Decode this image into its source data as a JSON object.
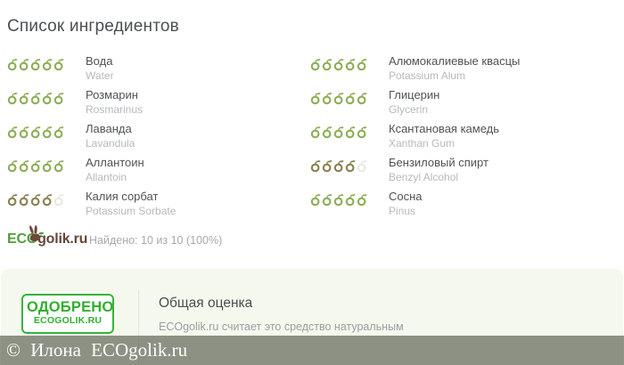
{
  "title": "Список ингредиентов",
  "colors": {
    "green": "#8fae58",
    "olive": "#8a8052",
    "empty": "#e9e9e3",
    "stamp_green": "#2fb02f",
    "logo_green": "#4f9e3e",
    "logo_brown": "#64463a",
    "panel_bg": "#f5f8ec"
  },
  "icons": {
    "rating": "fruit-icon",
    "logo": "rabbit-icon"
  },
  "ingredients": {
    "left": [
      {
        "name": "Вода",
        "latin": "Water",
        "score": 5,
        "max": 5,
        "color": "green"
      },
      {
        "name": "Розмарин",
        "latin": "Rosmarinus",
        "score": 5,
        "max": 5,
        "color": "green"
      },
      {
        "name": "Лаванда",
        "latin": "Lavandula",
        "score": 5,
        "max": 5,
        "color": "green"
      },
      {
        "name": "Аллантоин",
        "latin": "Allantoin",
        "score": 5,
        "max": 5,
        "color": "green"
      },
      {
        "name": "Калия сорбат",
        "latin": "Potassium Sorbate",
        "score": 4,
        "max": 5,
        "color": "olive"
      }
    ],
    "right": [
      {
        "name": "Алюмокалиевые квасцы",
        "latin": "Potassium Alum",
        "score": 5,
        "max": 5,
        "color": "green"
      },
      {
        "name": "Глицерин",
        "latin": "Glycerin",
        "score": 5,
        "max": 5,
        "color": "green"
      },
      {
        "name": "Ксантановая камедь",
        "latin": "Xanthan Gum",
        "score": 5,
        "max": 5,
        "color": "green"
      },
      {
        "name": "Бензиловый спирт",
        "latin": "Benzyl Alcohol",
        "score": 4,
        "max": 5,
        "color": "olive"
      },
      {
        "name": "Сосна",
        "latin": "Pinus",
        "score": 5,
        "max": 5,
        "color": "green"
      }
    ]
  },
  "logo": {
    "eco": "ECO",
    "rest": "golik.ru"
  },
  "found_text": "Найдено: 10 из 10 (100%)",
  "summary": {
    "stamp_line1": "ОДОБРЕНО",
    "stamp_line2": "ECOGOLIK.RU",
    "heading": "Общая оценка",
    "text": "ECOgolik.ru считает это средство натуральным"
  },
  "footer": {
    "copyright": "© Илона ECOgolik.ru"
  }
}
